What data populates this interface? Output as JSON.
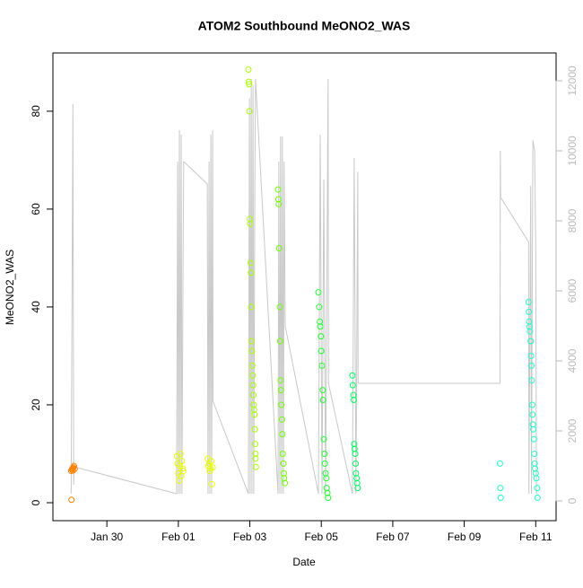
{
  "chart_data": {
    "type": "scatter",
    "title": "ATOM2 Southbound MeONO2_WAS",
    "x_label": "Date",
    "y_label": "MeONO2_WAS",
    "xlim": [
      28.49,
      42.57
    ],
    "xticks": [
      {
        "value": 30,
        "label": "Jan 30"
      },
      {
        "value": 32,
        "label": "Feb 01"
      },
      {
        "value": 34,
        "label": "Feb 03"
      },
      {
        "value": 36,
        "label": "Feb 05"
      },
      {
        "value": 38,
        "label": "Feb 07"
      },
      {
        "value": 40,
        "label": "Feb 09"
      },
      {
        "value": 42,
        "label": "Feb 11"
      }
    ],
    "ylim": [
      -3.67,
      91.9
    ],
    "yticks": [
      0,
      20,
      40,
      60,
      80
    ],
    "y2lim": [
      -564,
      12795
    ],
    "y2ticks": [
      0,
      2000,
      4000,
      6000,
      8000,
      10000,
      12000
    ],
    "y2_color": "#bbbbbb",
    "series": [
      {
        "type": "line",
        "axis": "y2",
        "color": "#c8c8c8",
        "x": [
          29.0,
          29.05,
          29.07,
          29.08,
          31.95,
          31.98,
          32.0,
          32.03,
          32.05,
          32.08,
          32.1,
          32.13,
          32.15,
          32.81,
          32.83,
          32.86,
          32.88,
          32.91,
          32.93,
          32.96,
          32.97,
          33.96,
          33.99,
          34.01,
          34.04,
          34.06,
          34.09,
          34.11,
          34.14,
          34.16,
          34.79,
          34.81,
          34.84,
          34.86,
          34.89,
          34.91,
          34.94,
          34.96,
          34.99,
          35.92,
          35.97,
          36.02,
          36.07,
          36.12,
          36.19,
          36.2,
          36.87,
          36.92,
          36.97,
          37.02,
          37.03,
          41.0,
          41.01,
          41.02,
          41.8,
          41.81,
          41.86,
          41.88,
          41.92,
          41.97,
          42.0,
          42.02
        ],
        "values": [
          205,
          11333,
          462,
          974,
          205,
          9692,
          205,
          10590,
          205,
          10462,
          205,
          6359,
          9692,
          9051,
          205,
          9692,
          205,
          10462,
          205,
          10590,
          2846,
          205,
          11500,
          205,
          12051,
          205,
          11872,
          205,
          8974,
          12051,
          205,
          9692,
          205,
          10410,
          205,
          10410,
          205,
          9692,
          5000,
          205,
          10462,
          205,
          9179,
          205,
          12051,
          3359,
          205,
          9800,
          205,
          9400,
          3359,
          3359,
          10000,
          8667,
          7400,
          205,
          9000,
          205,
          10300,
          10000,
          7200,
          205
        ]
      },
      {
        "color": "#ff8000",
        "x": [
          29.0,
          29.01,
          29.02,
          29.04,
          29.05,
          29.06,
          29.08,
          29.1
        ],
        "values": [
          6.5,
          0.6,
          6.8,
          7.0,
          6.6,
          7.2,
          7.5,
          6.9
        ]
      },
      {
        "color": "#e8ff00",
        "x": [
          31.96,
          31.98,
          32.0,
          32.02,
          32.04,
          32.06,
          32.08,
          32.1,
          32.12,
          32.14,
          32.82,
          32.84,
          32.86,
          32.88,
          32.9,
          32.92,
          32.94,
          32.96
        ],
        "values": [
          9.5,
          8.0,
          6.0,
          4.5,
          7.5,
          10.0,
          5.5,
          8.5,
          7.0,
          6.5,
          9.0,
          7.5,
          8.0,
          6.5,
          7.0,
          8.5,
          3.8,
          7.2
        ]
      },
      {
        "color": "#a8ff00",
        "x": [
          33.96,
          33.97,
          33.98,
          33.99,
          34.0,
          34.01,
          34.02,
          34.03,
          34.04,
          34.05,
          34.06,
          34.07,
          34.08,
          34.09,
          34.1,
          34.11,
          34.12,
          34.13,
          34.14,
          34.15,
          34.16,
          34.16,
          34.17
        ],
        "values": [
          88.5,
          86,
          85.5,
          80,
          58,
          57,
          49,
          47,
          40,
          33,
          31,
          28,
          26,
          24,
          22,
          20,
          19,
          18,
          15,
          12,
          10,
          9,
          7.3
        ]
      },
      {
        "color": "#70ff00",
        "x": [
          34.79,
          34.8,
          34.81,
          34.82,
          34.84,
          34.85,
          34.86,
          34.87,
          34.88,
          34.9,
          34.91,
          34.92,
          34.94,
          34.95,
          34.96,
          34.98
        ],
        "values": [
          64,
          62,
          61,
          52,
          40,
          33,
          25,
          23,
          20,
          17,
          14,
          10,
          8,
          6,
          5,
          4
        ]
      },
      {
        "color": "#20ff30",
        "x": [
          35.92,
          35.94,
          35.96,
          35.97,
          35.99,
          36.0,
          36.02,
          36.04,
          36.05,
          36.07,
          36.09,
          36.1,
          36.12,
          36.14,
          36.15,
          36.17,
          36.19
        ],
        "values": [
          43,
          40,
          37,
          36,
          34,
          31,
          28,
          23,
          21,
          13,
          10,
          8,
          6,
          5,
          3,
          2,
          1
        ]
      },
      {
        "color": "#00ff60",
        "x": [
          36.87,
          36.88,
          36.9,
          36.91,
          36.92,
          36.93,
          36.95,
          36.96,
          36.97,
          36.99,
          37.0,
          37.02
        ],
        "values": [
          26,
          24,
          22,
          21,
          12,
          11,
          10,
          8,
          6,
          5,
          4,
          3
        ]
      },
      {
        "color": "#20ffc8",
        "x": [
          41.0,
          41.01,
          41.02,
          41.8,
          41.81,
          41.82,
          41.83,
          41.84,
          41.86,
          41.87,
          41.88,
          41.89,
          41.9,
          41.91,
          41.92,
          41.93,
          41.95,
          41.96,
          41.97,
          41.98,
          42.0,
          42.02,
          42.04,
          42.05
        ],
        "values": [
          8,
          3,
          1,
          41,
          39,
          37,
          36,
          35,
          33,
          30,
          28,
          25,
          20,
          18,
          16,
          15,
          13,
          10,
          8,
          7,
          6,
          5,
          3,
          1
        ]
      }
    ]
  }
}
